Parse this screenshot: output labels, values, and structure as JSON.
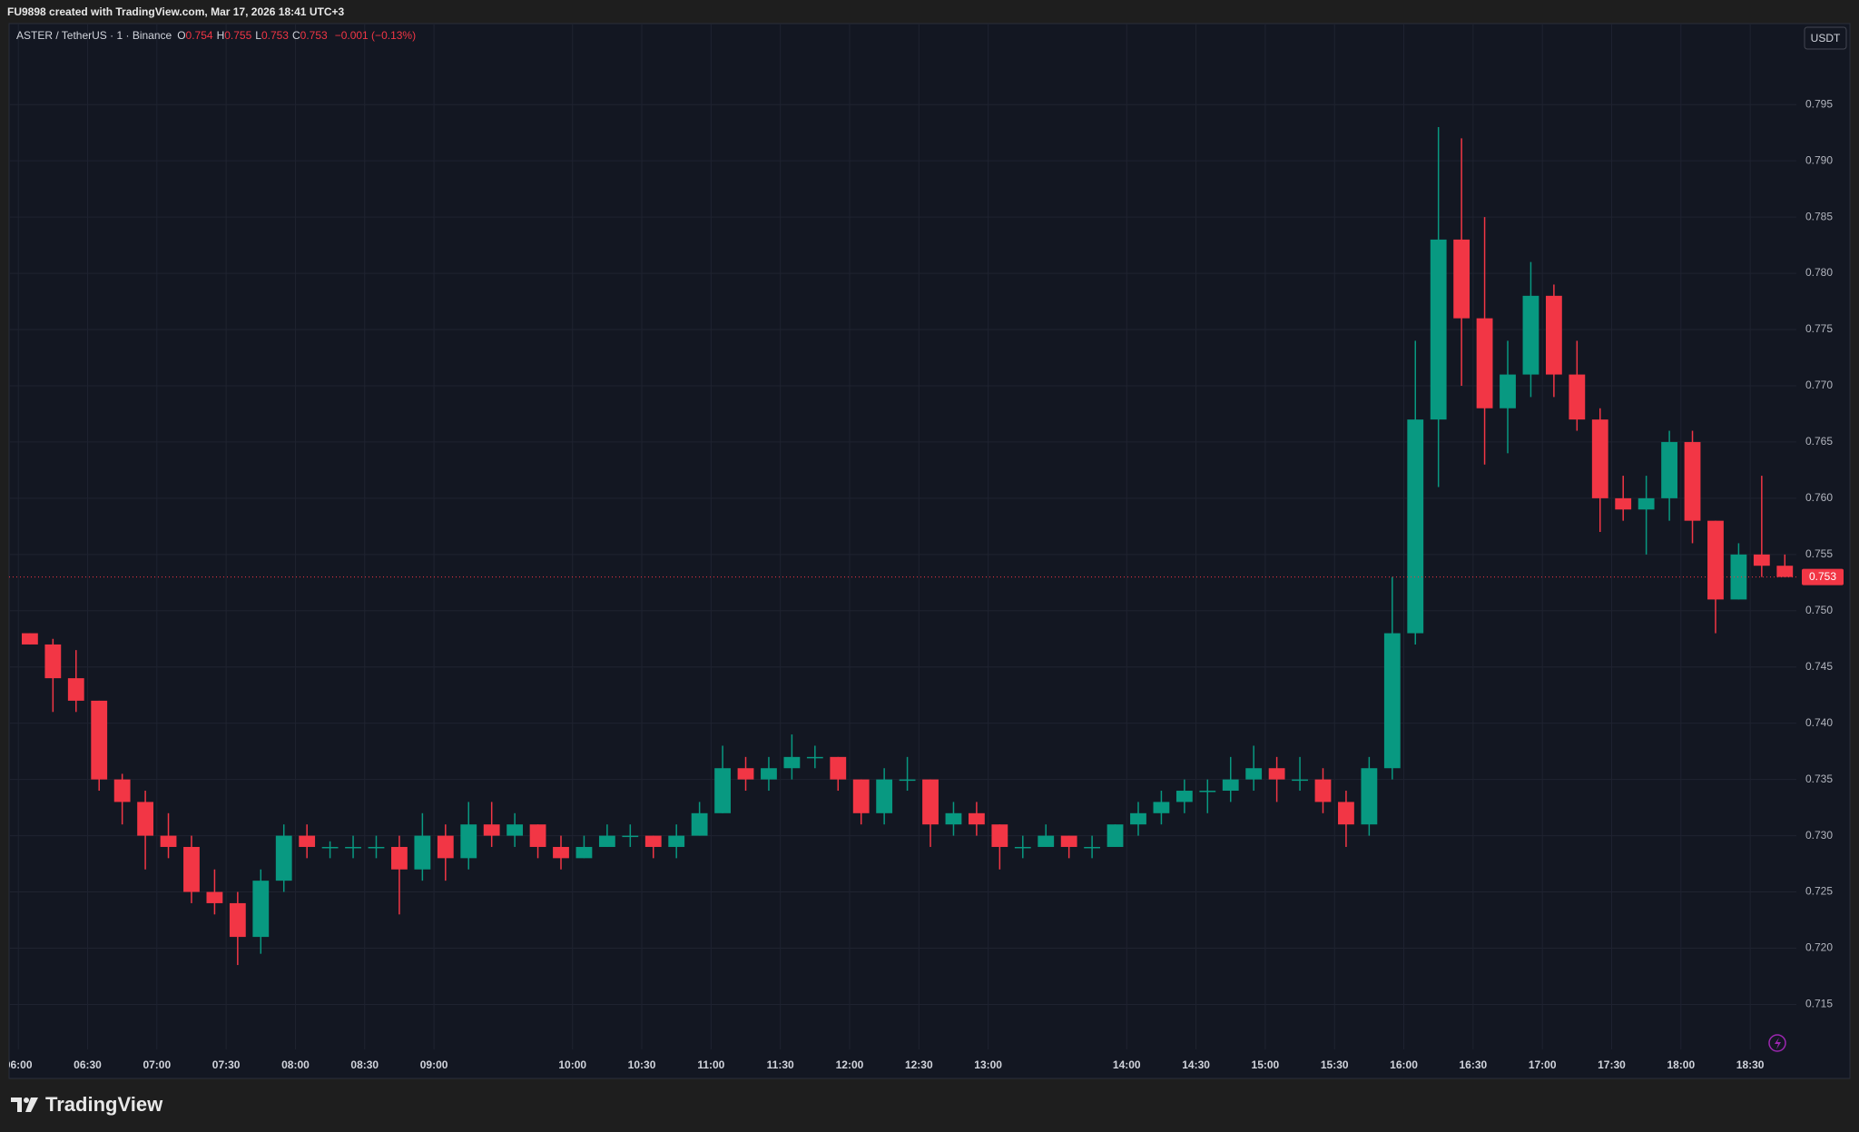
{
  "header": "FU9898 created with TradingView.com, Mar 17, 2026 18:41 UTC+3",
  "legend": {
    "symbol": "ASTER / TetherUS · 1 · Binance",
    "items": [
      {
        "label": "O",
        "value": 0.754
      },
      {
        "label": "H",
        "value": 0.755
      },
      {
        "label": "L",
        "value": 0.753
      },
      {
        "label": "C",
        "value": 0.753
      }
    ],
    "change": "−0.001 (−0.13%)"
  },
  "currency_button": "USDT",
  "brand": "TradingView",
  "chart_data": {
    "type": "candlestick",
    "up_color": "#089981",
    "down_color": "#f23645",
    "x": [
      "06:00",
      "06:10",
      "06:20",
      "06:30",
      "06:40",
      "06:50",
      "07:00",
      "07:10",
      "07:20",
      "07:30",
      "07:40",
      "07:50",
      "08:00",
      "08:10",
      "08:20",
      "08:30",
      "08:40",
      "08:50",
      "09:00",
      "09:10",
      "09:20",
      "09:30",
      "09:40",
      "09:50",
      "10:00",
      "10:10",
      "10:20",
      "10:30",
      "10:40",
      "10:50",
      "11:00",
      "11:10",
      "11:20",
      "11:30",
      "11:40",
      "11:50",
      "12:00",
      "12:10",
      "12:20",
      "12:30",
      "12:40",
      "12:50",
      "13:00",
      "13:10",
      "13:20",
      "13:30",
      "13:40",
      "13:50",
      "14:00",
      "14:10",
      "14:20",
      "14:30",
      "14:40",
      "14:50",
      "15:00",
      "15:10",
      "15:20",
      "15:30",
      "15:40",
      "15:50",
      "16:00",
      "16:10",
      "16:20",
      "16:30",
      "16:40",
      "16:50",
      "17:00",
      "17:10",
      "17:20",
      "17:30",
      "17:40",
      "17:50",
      "18:00",
      "18:10",
      "18:20",
      "18:30",
      "18:40"
    ],
    "open": [
      0.748,
      0.747,
      0.744,
      0.742,
      0.735,
      0.733,
      0.73,
      0.729,
      0.725,
      0.724,
      0.721,
      0.726,
      0.73,
      0.729,
      0.729,
      0.729,
      0.729,
      0.727,
      0.73,
      0.728,
      0.731,
      0.73,
      0.731,
      0.729,
      0.728,
      0.729,
      0.73,
      0.73,
      0.729,
      0.73,
      0.732,
      0.736,
      0.735,
      0.736,
      0.737,
      0.737,
      0.735,
      0.732,
      0.735,
      0.735,
      0.731,
      0.732,
      0.731,
      0.729,
      0.729,
      0.73,
      0.729,
      0.729,
      0.731,
      0.732,
      0.733,
      0.734,
      0.734,
      0.735,
      0.736,
      0.735,
      0.735,
      0.733,
      0.731,
      0.736,
      0.748,
      0.767,
      0.783,
      0.776,
      0.768,
      0.771,
      0.778,
      0.771,
      0.767,
      0.76,
      0.759,
      0.76,
      0.765,
      0.758,
      0.751,
      0.755,
      0.754
    ],
    "high": [
      0.748,
      0.7475,
      0.7465,
      0.742,
      0.7355,
      0.734,
      0.732,
      0.73,
      0.727,
      0.725,
      0.727,
      0.731,
      0.731,
      0.7295,
      0.73,
      0.73,
      0.73,
      0.732,
      0.731,
      0.733,
      0.733,
      0.732,
      0.731,
      0.73,
      0.73,
      0.731,
      0.731,
      0.73,
      0.731,
      0.733,
      0.738,
      0.737,
      0.737,
      0.739,
      0.738,
      0.737,
      0.735,
      0.736,
      0.737,
      0.735,
      0.733,
      0.733,
      0.731,
      0.73,
      0.731,
      0.73,
      0.73,
      0.731,
      0.733,
      0.734,
      0.735,
      0.735,
      0.737,
      0.738,
      0.737,
      0.737,
      0.736,
      0.734,
      0.737,
      0.753,
      0.774,
      0.793,
      0.792,
      0.785,
      0.774,
      0.781,
      0.779,
      0.774,
      0.768,
      0.762,
      0.762,
      0.766,
      0.766,
      0.758,
      0.756,
      0.762,
      0.755
    ],
    "low": [
      0.747,
      0.741,
      0.741,
      0.734,
      0.731,
      0.727,
      0.728,
      0.724,
      0.723,
      0.7185,
      0.7195,
      0.725,
      0.728,
      0.728,
      0.728,
      0.728,
      0.723,
      0.726,
      0.726,
      0.727,
      0.729,
      0.729,
      0.728,
      0.727,
      0.728,
      0.729,
      0.729,
      0.728,
      0.728,
      0.73,
      0.732,
      0.734,
      0.734,
      0.735,
      0.736,
      0.734,
      0.731,
      0.731,
      0.734,
      0.729,
      0.73,
      0.73,
      0.727,
      0.728,
      0.729,
      0.728,
      0.728,
      0.729,
      0.73,
      0.731,
      0.732,
      0.732,
      0.733,
      0.734,
      0.733,
      0.734,
      0.732,
      0.729,
      0.73,
      0.735,
      0.747,
      0.761,
      0.77,
      0.763,
      0.764,
      0.769,
      0.769,
      0.766,
      0.757,
      0.758,
      0.755,
      0.758,
      0.756,
      0.748,
      0.751,
      0.753,
      0.753
    ],
    "close": [
      0.747,
      0.744,
      0.742,
      0.735,
      0.733,
      0.73,
      0.729,
      0.725,
      0.724,
      0.721,
      0.726,
      0.73,
      0.729,
      0.729,
      0.729,
      0.729,
      0.727,
      0.73,
      0.728,
      0.731,
      0.73,
      0.731,
      0.729,
      0.728,
      0.729,
      0.73,
      0.73,
      0.729,
      0.73,
      0.732,
      0.736,
      0.735,
      0.736,
      0.737,
      0.737,
      0.735,
      0.732,
      0.735,
      0.735,
      0.731,
      0.732,
      0.731,
      0.729,
      0.729,
      0.73,
      0.729,
      0.729,
      0.731,
      0.732,
      0.733,
      0.734,
      0.734,
      0.735,
      0.736,
      0.735,
      0.735,
      0.733,
      0.731,
      0.736,
      0.748,
      0.767,
      0.783,
      0.776,
      0.768,
      0.771,
      0.778,
      0.771,
      0.767,
      0.76,
      0.759,
      0.76,
      0.765,
      0.758,
      0.751,
      0.755,
      0.754,
      0.753
    ],
    "last_price": 0.753,
    "xlim": [
      "05:56",
      "18:50"
    ],
    "xticks": [
      "06:00",
      "06:30",
      "07:00",
      "07:30",
      "08:00",
      "08:30",
      "09:00",
      "10:00",
      "10:30",
      "11:00",
      "11:30",
      "12:00",
      "12:30",
      "13:00",
      "14:00",
      "14:30",
      "15:00",
      "15:30",
      "16:00",
      "16:30",
      "17:00",
      "17:30",
      "18:00",
      "18:30"
    ],
    "ylim": [
      0.711,
      0.8022
    ],
    "yticks": [
      0.715,
      {
        "value": 0.72,
        "label": "0.720"
      },
      0.725,
      {
        "value": 0.73,
        "label": "0.730"
      },
      0.735,
      {
        "value": 0.74,
        "label": "0.740"
      },
      0.745,
      {
        "value": 0.75,
        "label": "0.750"
      },
      0.755,
      {
        "value": 0.76,
        "label": "0.760"
      },
      0.765,
      {
        "value": 0.77,
        "label": "0.770"
      },
      0.775,
      {
        "value": 0.78,
        "label": "0.780"
      },
      0.785,
      {
        "value": 0.79,
        "label": "0.790"
      },
      0.795
    ],
    "grid": true
  }
}
